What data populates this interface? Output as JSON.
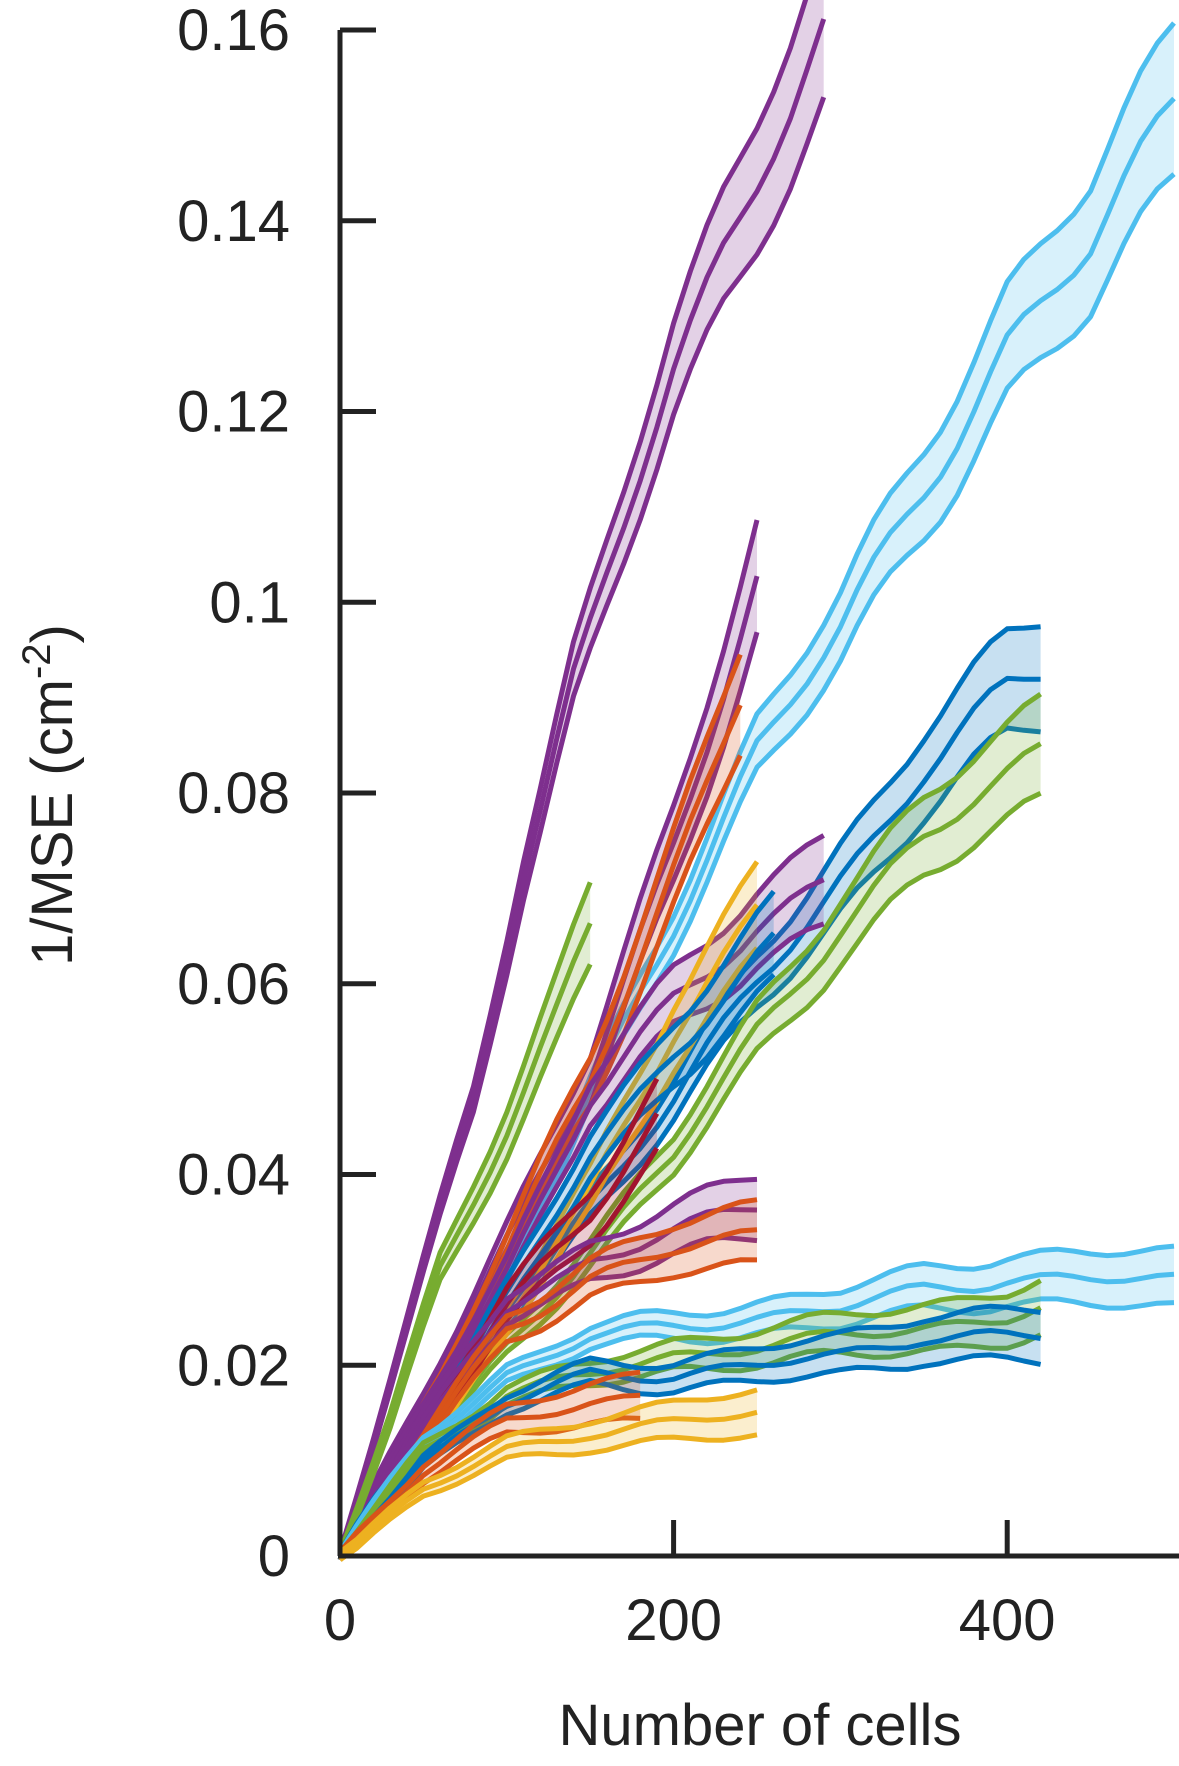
{
  "chart_data": {
    "type": "line",
    "title": "",
    "xlabel": "Number of cells",
    "ylabel": "1/MSE (cm",
    "ylabel_superscript": "-2",
    "ylabel_close": ")",
    "xlim": [
      0,
      500
    ],
    "ylim": [
      0,
      0.16
    ],
    "xticks": [
      0,
      200,
      400
    ],
    "xtick_labels": [
      "0",
      "200",
      "400"
    ],
    "yticks": [
      0,
      0.02,
      0.04,
      0.06,
      0.08,
      0.1,
      0.12,
      0.14,
      0.16
    ],
    "ytick_labels": [
      "0",
      "0.02",
      "0.04",
      "0.06",
      "0.08",
      "0.1",
      "0.12",
      "0.14",
      "0.16"
    ],
    "grid": false,
    "legend": "none",
    "shaded_error_bands": true,
    "series": [
      {
        "color": "#7E2F8E",
        "x": [
          0,
          20,
          50,
          80,
          110,
          140,
          170,
          200,
          230,
          260,
          290
        ],
        "y": [
          0,
          0.012,
          0.03,
          0.048,
          0.072,
          0.092,
          0.108,
          0.124,
          0.137,
          0.149,
          0.16
        ]
      },
      {
        "color": "#4DBEEE",
        "x": [
          0,
          30,
          60,
          100,
          150,
          200,
          250,
          300,
          350,
          400,
          450,
          500
        ],
        "y": [
          0,
          0.009,
          0.018,
          0.03,
          0.048,
          0.066,
          0.085,
          0.097,
          0.112,
          0.127,
          0.137,
          0.153
        ]
      },
      {
        "color": "#7E2F8E",
        "x": [
          0,
          30,
          60,
          100,
          150,
          200,
          250
        ],
        "y": [
          0,
          0.01,
          0.02,
          0.033,
          0.05,
          0.075,
          0.102
        ]
      },
      {
        "color": "#D95319",
        "x": [
          0,
          30,
          60,
          100,
          150,
          200,
          245
        ],
        "y": [
          0,
          0.009,
          0.018,
          0.032,
          0.05,
          0.072,
          0.092
        ]
      },
      {
        "color": "#0072BD",
        "x": [
          0,
          50,
          100,
          150,
          200,
          250,
          300,
          350,
          400,
          420
        ],
        "y": [
          0,
          0.012,
          0.025,
          0.037,
          0.048,
          0.06,
          0.071,
          0.082,
          0.091,
          0.093
        ]
      },
      {
        "color": "#77AC30",
        "x": [
          0,
          50,
          100,
          150,
          200,
          250,
          300,
          350,
          400,
          420
        ],
        "y": [
          0,
          0.011,
          0.022,
          0.032,
          0.042,
          0.055,
          0.066,
          0.075,
          0.082,
          0.085
        ]
      },
      {
        "color": "#7E2F8E",
        "x": [
          0,
          50,
          100,
          150,
          200,
          250,
          290
        ],
        "y": [
          0,
          0.015,
          0.03,
          0.048,
          0.058,
          0.066,
          0.071
        ]
      },
      {
        "color": "#77AC30",
        "x": [
          0,
          30,
          60,
          100,
          130,
          155
        ],
        "y": [
          0,
          0.014,
          0.03,
          0.045,
          0.057,
          0.068
        ]
      },
      {
        "color": "#EDB120",
        "x": [
          0,
          50,
          100,
          150,
          200,
          250
        ],
        "y": [
          0,
          0.011,
          0.025,
          0.038,
          0.055,
          0.068
        ]
      },
      {
        "color": "#0072BD",
        "x": [
          0,
          50,
          100,
          150,
          200,
          260
        ],
        "y": [
          0,
          0.013,
          0.027,
          0.042,
          0.053,
          0.064
        ]
      },
      {
        "color": "#A2142F",
        "x": [
          0,
          50,
          100,
          150,
          190
        ],
        "y": [
          0,
          0.013,
          0.026,
          0.036,
          0.046
        ]
      },
      {
        "color": "#7E2F8E",
        "x": [
          0,
          50,
          100,
          150,
          200,
          255
        ],
        "y": [
          0,
          0.014,
          0.026,
          0.031,
          0.034,
          0.037
        ]
      },
      {
        "color": "#D95319",
        "x": [
          0,
          50,
          100,
          150,
          200,
          250
        ],
        "y": [
          0,
          0.012,
          0.024,
          0.029,
          0.032,
          0.034
        ]
      },
      {
        "color": "#4DBEEE",
        "x": [
          0,
          50,
          100,
          150,
          200,
          250,
          300,
          350,
          400,
          450,
          500
        ],
        "y": [
          0,
          0.012,
          0.019,
          0.023,
          0.024,
          0.025,
          0.026,
          0.028,
          0.029,
          0.029,
          0.029
        ]
      },
      {
        "color": "#77AC30",
        "x": [
          0,
          50,
          100,
          150,
          200,
          250,
          300,
          350,
          400,
          420
        ],
        "y": [
          0,
          0.011,
          0.017,
          0.019,
          0.021,
          0.022,
          0.023,
          0.024,
          0.025,
          0.026
        ]
      },
      {
        "color": "#0072BD",
        "x": [
          0,
          50,
          100,
          150,
          200,
          250,
          300,
          350,
          400,
          420
        ],
        "y": [
          0,
          0.01,
          0.016,
          0.019,
          0.019,
          0.02,
          0.021,
          0.023,
          0.023,
          0.023
        ]
      },
      {
        "color": "#D95319",
        "x": [
          0,
          50,
          100,
          150,
          185
        ],
        "y": [
          0,
          0.009,
          0.014,
          0.016,
          0.017
        ]
      },
      {
        "color": "#EDB120",
        "x": [
          0,
          50,
          100,
          150,
          200,
          255
        ],
        "y": [
          0,
          0.007,
          0.011,
          0.013,
          0.014,
          0.015
        ]
      }
    ]
  }
}
